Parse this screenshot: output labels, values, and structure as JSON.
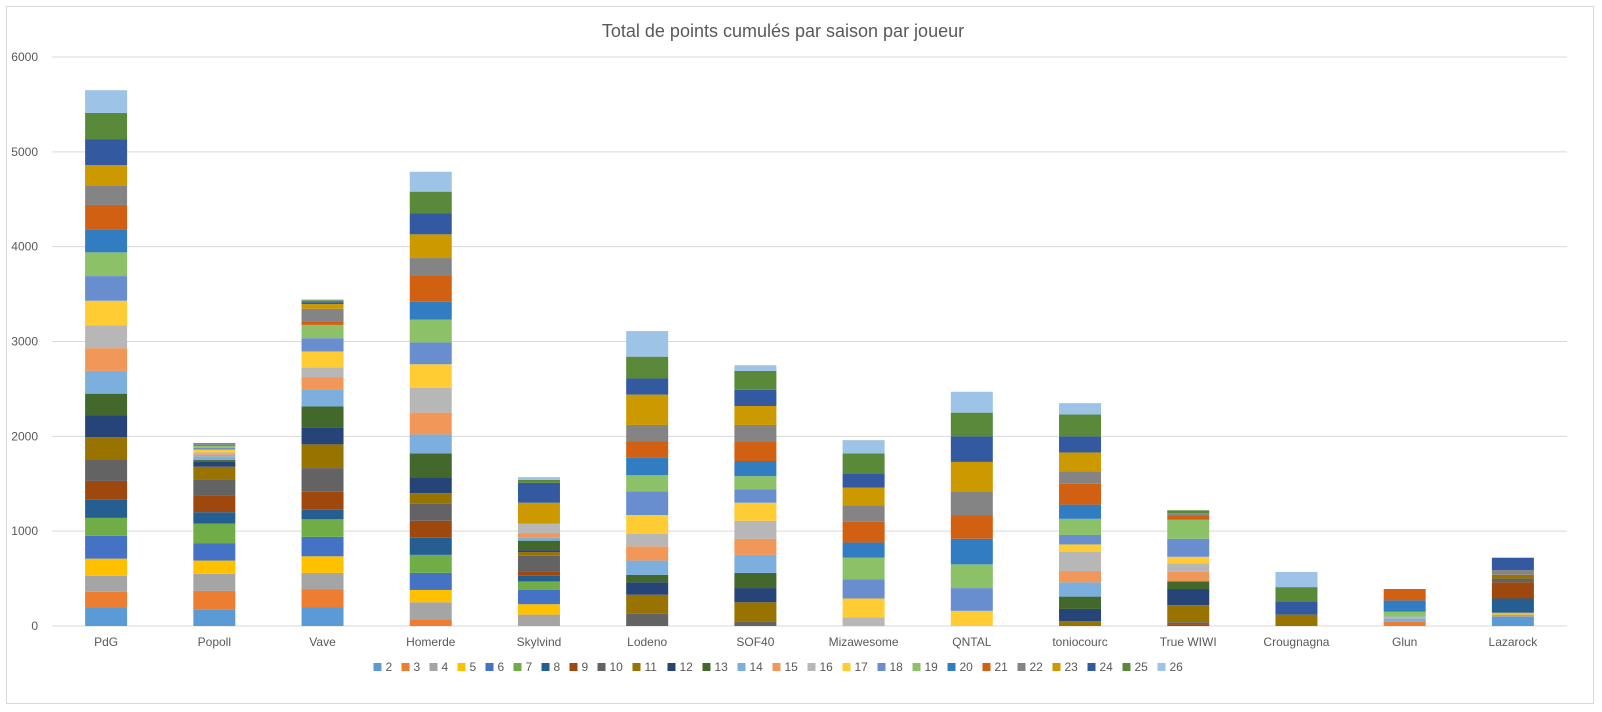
{
  "chart_data": {
    "type": "bar",
    "stacked": true,
    "title": "Total de points cumulés par saison par joueur",
    "categories": [
      "PdG",
      "Popoll",
      "Vave",
      "Homerde",
      "Skylvind",
      "Lodeno",
      "SOF40",
      "Mizawesome",
      "QNTAL",
      "toniocourc",
      "True WIWI",
      "Crougnagna",
      "Glun",
      "Lazarock"
    ],
    "yticks": [
      "0",
      "1000",
      "2000",
      "3000",
      "4000",
      "5000",
      "6000"
    ],
    "ylim": [
      0,
      6000
    ],
    "grid": true,
    "legend_position": "bottom",
    "series": [
      {
        "name": "2",
        "color": "#5b9bd5",
        "values": [
          190,
          170,
          195,
          0,
          0,
          0,
          0,
          0,
          0,
          0,
          0,
          0,
          0,
          95
        ]
      },
      {
        "name": "3",
        "color": "#ed7d31",
        "values": [
          170,
          200,
          190,
          70,
          0,
          0,
          0,
          0,
          0,
          0,
          0,
          0,
          50,
          0
        ]
      },
      {
        "name": "4",
        "color": "#a5a5a5",
        "values": [
          170,
          180,
          175,
          180,
          120,
          0,
          0,
          0,
          0,
          0,
          0,
          0,
          0,
          25
        ]
      },
      {
        "name": "5",
        "color": "#ffc000",
        "values": [
          180,
          140,
          175,
          130,
          110,
          0,
          0,
          0,
          0,
          0,
          0,
          0,
          0,
          20
        ]
      },
      {
        "name": "6",
        "color": "#4472c4",
        "values": [
          240,
          180,
          205,
          180,
          150,
          0,
          0,
          0,
          0,
          0,
          0,
          0,
          0,
          0
        ]
      },
      {
        "name": "7",
        "color": "#70ad47",
        "values": [
          190,
          210,
          185,
          190,
          90,
          0,
          0,
          0,
          0,
          0,
          0,
          0,
          0,
          0
        ]
      },
      {
        "name": "8",
        "color": "#255e91",
        "values": [
          190,
          120,
          100,
          180,
          60,
          0,
          0,
          0,
          0,
          0,
          0,
          0,
          0,
          150
        ]
      },
      {
        "name": "9",
        "color": "#9e480e",
        "values": [
          200,
          180,
          190,
          180,
          40,
          0,
          0,
          0,
          0,
          0,
          20,
          0,
          0,
          170
        ]
      },
      {
        "name": "10",
        "color": "#636363",
        "values": [
          230,
          160,
          250,
          180,
          170,
          130,
          50,
          0,
          0,
          0,
          20,
          0,
          0,
          40
        ]
      },
      {
        "name": "11",
        "color": "#997300",
        "values": [
          230,
          140,
          250,
          110,
          40,
          200,
          200,
          0,
          0,
          50,
          180,
          120,
          0,
          40
        ]
      },
      {
        "name": "12",
        "color": "#264478",
        "values": [
          230,
          50,
          180,
          170,
          20,
          130,
          150,
          0,
          0,
          130,
          170,
          0,
          0,
          0
        ]
      },
      {
        "name": "13",
        "color": "#43682b",
        "values": [
          230,
          20,
          220,
          250,
          100,
          80,
          160,
          0,
          0,
          130,
          80,
          0,
          0,
          0
        ]
      },
      {
        "name": "14",
        "color": "#7cafdd",
        "values": [
          240,
          40,
          180,
          200,
          30,
          150,
          190,
          0,
          0,
          150,
          0,
          0,
          30,
          0
        ]
      },
      {
        "name": "15",
        "color": "#f1975a",
        "values": [
          240,
          20,
          130,
          230,
          50,
          150,
          170,
          0,
          0,
          120,
          100,
          0,
          0,
          0
        ]
      },
      {
        "name": "16",
        "color": "#b7b7b7",
        "values": [
          240,
          20,
          100,
          260,
          100,
          130,
          190,
          90,
          0,
          200,
          90,
          0,
          20,
          0
        ]
      },
      {
        "name": "17",
        "color": "#ffcd33",
        "values": [
          260,
          30,
          170,
          250,
          0,
          200,
          190,
          200,
          160,
          80,
          70,
          0,
          0,
          0
        ]
      },
      {
        "name": "18",
        "color": "#698ed0",
        "values": [
          260,
          20,
          140,
          230,
          0,
          250,
          140,
          200,
          240,
          100,
          190,
          0,
          0,
          0
        ]
      },
      {
        "name": "19",
        "color": "#8cc168",
        "values": [
          250,
          20,
          140,
          240,
          0,
          170,
          140,
          230,
          250,
          170,
          200,
          0,
          50,
          0
        ]
      },
      {
        "name": "20",
        "color": "#327dc2",
        "values": [
          240,
          10,
          0,
          190,
          0,
          190,
          160,
          160,
          270,
          150,
          0,
          0,
          120,
          0
        ]
      },
      {
        "name": "21",
        "color": "#d26012",
        "values": [
          260,
          0,
          40,
          280,
          0,
          170,
          200,
          220,
          250,
          220,
          40,
          0,
          120,
          0
        ]
      },
      {
        "name": "22",
        "color": "#848484",
        "values": [
          200,
          20,
          130,
          180,
          0,
          170,
          180,
          170,
          250,
          130,
          30,
          0,
          0,
          50
        ]
      },
      {
        "name": "23",
        "color": "#cc9a00",
        "values": [
          220,
          0,
          50,
          250,
          220,
          320,
          200,
          190,
          310,
          200,
          0,
          0,
          0,
          0
        ]
      },
      {
        "name": "24",
        "color": "#335aa1",
        "values": [
          270,
          0,
          20,
          220,
          210,
          170,
          170,
          150,
          270,
          170,
          0,
          140,
          0,
          130
        ]
      },
      {
        "name": "25",
        "color": "#5a8a39",
        "values": [
          280,
          0,
          20,
          230,
          30,
          230,
          200,
          210,
          250,
          230,
          30,
          150,
          0,
          0
        ]
      },
      {
        "name": "26",
        "color": "#9dc3e6",
        "values": [
          240,
          0,
          10,
          210,
          30,
          270,
          60,
          140,
          220,
          120,
          0,
          160,
          0,
          0
        ]
      }
    ]
  }
}
